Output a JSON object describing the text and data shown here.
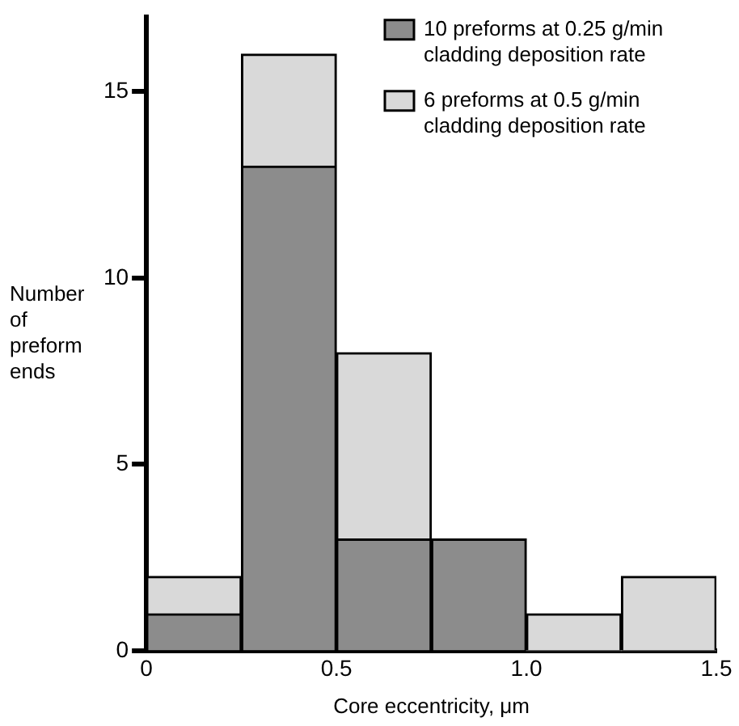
{
  "chart_data": {
    "type": "bar",
    "xlabel": "Core eccentricity, μm",
    "ylabel": "Number of preform ends",
    "x": [
      0.125,
      0.375,
      0.625,
      0.875,
      1.125,
      1.375
    ],
    "stacked": true,
    "series": [
      {
        "name": "10 preforms at 0.25 g/min cladding deposition rate",
        "color": "#8c8c8c",
        "values": [
          1,
          13,
          3,
          3,
          0,
          0
        ]
      },
      {
        "name": "6 preforms at 0.5 g/min cladding deposition rate",
        "color": "#d9d9d9",
        "values": [
          1,
          3,
          5,
          0,
          1,
          2
        ]
      }
    ],
    "xlim": [
      0,
      1.5
    ],
    "xticks": [
      0,
      0.5,
      {
        "value": 1,
        "label": "1.0"
      },
      1.5
    ],
    "ylim": [
      0,
      17
    ],
    "yticks": [
      0,
      5,
      10,
      15
    ],
    "grid": false,
    "legend": "top right"
  }
}
